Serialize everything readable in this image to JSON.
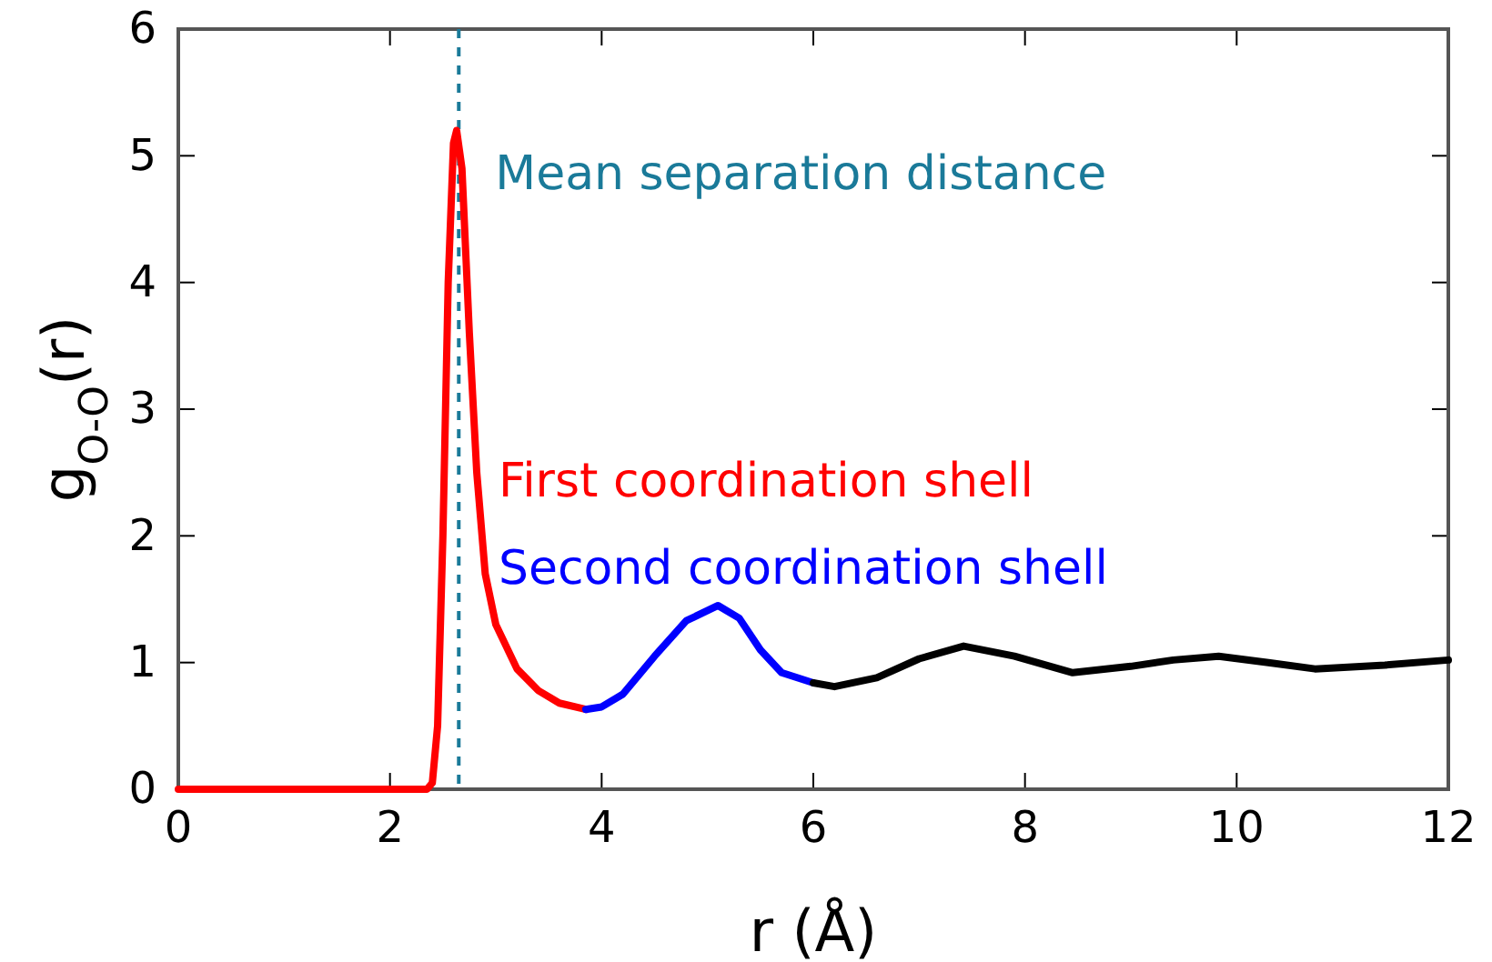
{
  "chart_data": {
    "type": "line",
    "xlabel": "r (Å)",
    "ylabel": "g$_{O-O}$(r)",
    "xlim": [
      0,
      12
    ],
    "xticks": [
      0,
      2,
      4,
      6,
      8,
      10,
      12
    ],
    "ylim": [
      0,
      6
    ],
    "yticks": [
      0,
      1,
      2,
      3,
      4,
      5,
      6
    ],
    "grid": false,
    "marker": "none",
    "line_style": "solid",
    "ref_lines": [
      {
        "axis": "x",
        "value": 2.65,
        "label": "Mean separation distance",
        "color": "#1a7a99",
        "line_style": "dashed"
      }
    ],
    "series": [
      {
        "name": "First coordination shell",
        "color": "#ff0000",
        "x": [
          0,
          1,
          2,
          2.35,
          2.4,
          2.45,
          2.5,
          2.55,
          2.6,
          2.63,
          2.68,
          2.75,
          2.82,
          2.9,
          3.0,
          3.2,
          3.4,
          3.6,
          3.85
        ],
        "values": [
          0,
          0,
          0,
          0,
          0.05,
          0.5,
          2.0,
          4.0,
          5.1,
          5.2,
          4.9,
          3.6,
          2.5,
          1.7,
          1.3,
          0.95,
          0.78,
          0.68,
          0.63
        ]
      },
      {
        "name": "Second coordination shell",
        "color": "#0000ff",
        "x": [
          3.85,
          4.0,
          4.2,
          4.5,
          4.8,
          5.1,
          5.3,
          5.5,
          5.7,
          6.0
        ],
        "values": [
          0.63,
          0.65,
          0.75,
          1.05,
          1.33,
          1.45,
          1.35,
          1.1,
          0.92,
          0.84
        ]
      },
      {
        "color": "#000000",
        "x": [
          6.0,
          6.2,
          6.6,
          7.0,
          7.42,
          7.9,
          8.45,
          9.0,
          9.4,
          9.83,
          10.3,
          10.74,
          11.4,
          12
        ],
        "values": [
          0.84,
          0.81,
          0.88,
          1.03,
          1.13,
          1.05,
          0.92,
          0.97,
          1.02,
          1.05,
          1.0,
          0.95,
          0.98,
          1.02
        ]
      }
    ]
  }
}
